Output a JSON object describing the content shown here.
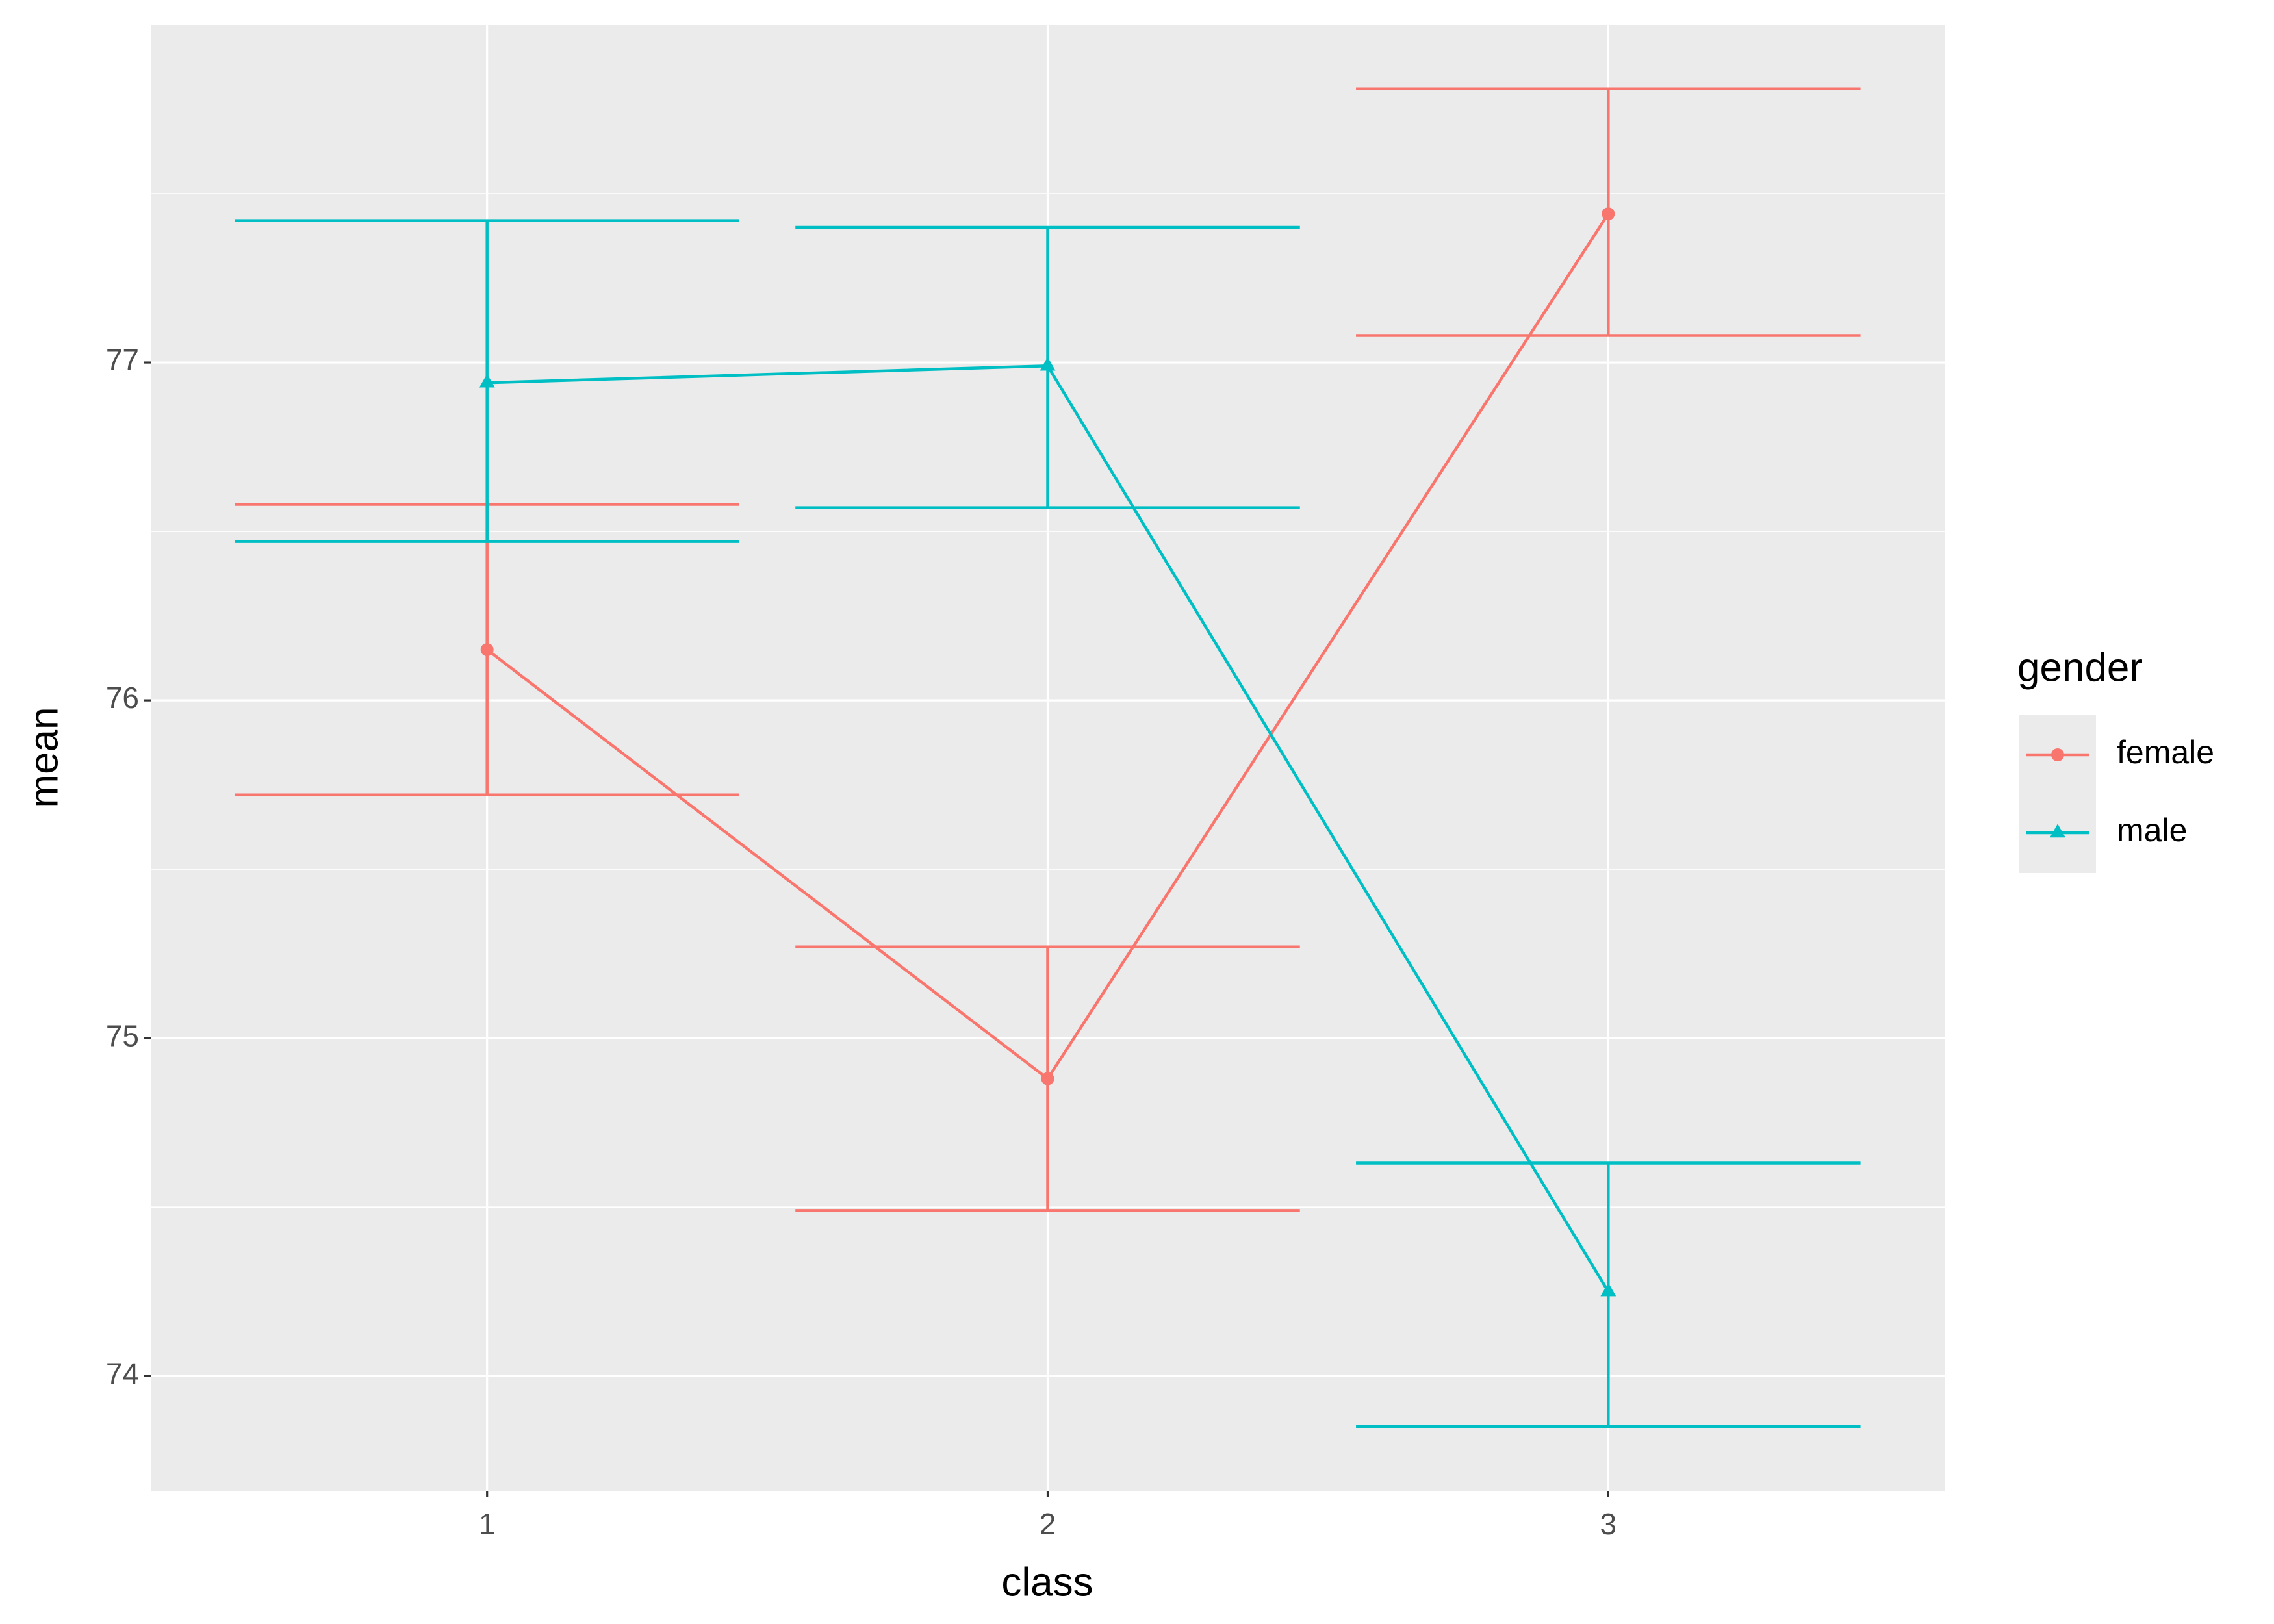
{
  "chart_data": {
    "type": "line",
    "x_label": "class",
    "y_label": "mean",
    "legend_title": "gender",
    "categories": [
      "1",
      "2",
      "3"
    ],
    "series": [
      {
        "name": "female",
        "color": "#f8766d",
        "marker": "circle",
        "values": [
          76.15,
          74.88,
          77.44
        ],
        "lower": [
          75.72,
          74.49,
          77.08
        ],
        "upper": [
          76.58,
          75.27,
          77.81
        ]
      },
      {
        "name": "male",
        "color": "#00bfc4",
        "marker": "triangle",
        "values": [
          76.94,
          76.99,
          74.25
        ],
        "lower": [
          76.47,
          76.57,
          73.85
        ],
        "upper": [
          77.42,
          77.4,
          74.63
        ]
      }
    ],
    "ylim": [
      73.66,
      78.0
    ],
    "yticks": [
      74,
      75,
      76,
      77
    ],
    "grid": true,
    "legend": "right"
  }
}
